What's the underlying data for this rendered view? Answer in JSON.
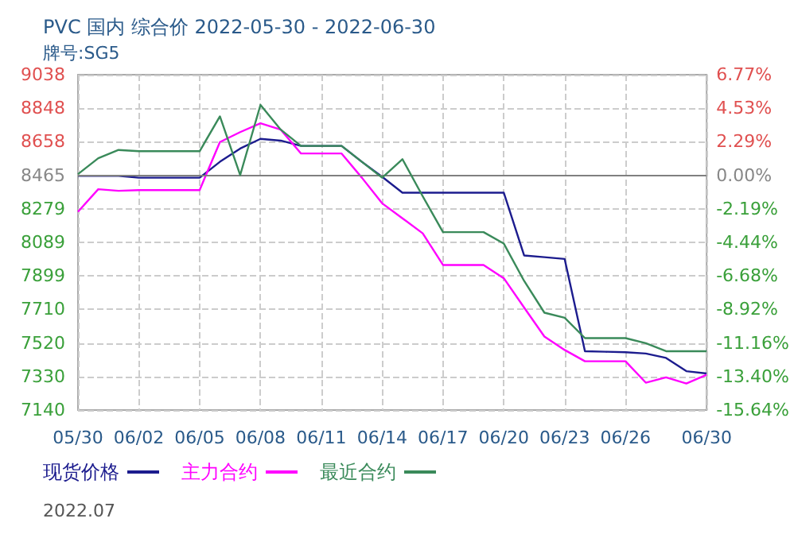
{
  "chart_data": {
    "type": "line",
    "title": "PVC 国内 综合价 2022-05-30 - 2022-06-30",
    "subtitle": "牌号:SG5",
    "x": [
      "2022-05-30",
      "2022-05-31",
      "2022-06-01",
      "2022-06-02",
      "2022-06-03",
      "2022-06-04",
      "2022-06-05",
      "2022-06-06",
      "2022-06-07",
      "2022-06-08",
      "2022-06-09",
      "2022-06-10",
      "2022-06-11",
      "2022-06-12",
      "2022-06-13",
      "2022-06-14",
      "2022-06-15",
      "2022-06-16",
      "2022-06-17",
      "2022-06-18",
      "2022-06-19",
      "2022-06-20",
      "2022-06-21",
      "2022-06-22",
      "2022-06-23",
      "2022-06-24",
      "2022-06-25",
      "2022-06-26",
      "2022-06-27",
      "2022-06-28",
      "2022-06-29",
      "2022-06-30"
    ],
    "series": [
      {
        "name": "现货价格",
        "color": "#1c1c8e",
        "values": [
          8465,
          8465,
          8465,
          8455,
          8455,
          8455,
          8455,
          8545,
          8620,
          8675,
          8665,
          8635,
          8635,
          8635,
          8545,
          8460,
          8370,
          8370,
          8370,
          8370,
          8370,
          8370,
          8015,
          8005,
          7995,
          7473,
          7470,
          7467,
          7460,
          7435,
          7360,
          7347
        ]
      },
      {
        "name": "主力合约",
        "color": "#ff00ff",
        "values": [
          8262,
          8390,
          8381,
          8385,
          8385,
          8385,
          8385,
          8657,
          8713,
          8763,
          8727,
          8592,
          8592,
          8592,
          8455,
          8310,
          8225,
          8140,
          7961,
          7961,
          7961,
          7886,
          7720,
          7556,
          7480,
          7416,
          7416,
          7416,
          7295,
          7325,
          7290,
          7340
        ]
      },
      {
        "name": "最近合约",
        "color": "#3a8a5a",
        "values": [
          8475,
          8565,
          8612,
          8605,
          8605,
          8605,
          8605,
          8802,
          8470,
          8867,
          8727,
          8635,
          8635,
          8635,
          8545,
          8455,
          8560,
          8350,
          8147,
          8147,
          8147,
          8082,
          7871,
          7691,
          7662,
          7547,
          7547,
          7547,
          7518,
          7473,
          7473,
          7473
        ]
      }
    ],
    "xlim": [
      "2022-05-30",
      "2022-06-30"
    ],
    "xticks": [
      {
        "value": "2022-05-30",
        "label": "05/30"
      },
      {
        "value": "2022-06-02",
        "label": "06/02"
      },
      {
        "value": "2022-06-05",
        "label": "06/05"
      },
      {
        "value": "2022-06-08",
        "label": "06/08"
      },
      {
        "value": "2022-06-11",
        "label": "06/11"
      },
      {
        "value": "2022-06-14",
        "label": "06/14"
      },
      {
        "value": "2022-06-17",
        "label": "06/17"
      },
      {
        "value": "2022-06-20",
        "label": "06/20"
      },
      {
        "value": "2022-06-23",
        "label": "06/23"
      },
      {
        "value": "2022-06-26",
        "label": "06/26"
      },
      {
        "value": "2022-06-30",
        "label": "06/30"
      }
    ],
    "ylim": [
      7140,
      9038
    ],
    "yticks": [
      7140,
      7330,
      7520,
      7710,
      7899,
      8089,
      8279,
      8465,
      8658,
      8848,
      9038
    ],
    "y2lim": [
      -15.64,
      6.77
    ],
    "y2ticks": [
      {
        "value": -15.64,
        "label": "-15.64%"
      },
      {
        "value": -13.4,
        "label": "-13.40%"
      },
      {
        "value": -11.16,
        "label": "-11.16%"
      },
      {
        "value": -8.92,
        "label": "-8.92%"
      },
      {
        "value": -6.68,
        "label": "-6.68%"
      },
      {
        "value": -4.44,
        "label": "-4.44%"
      },
      {
        "value": -2.19,
        "label": "-2.19%"
      },
      {
        "value": 0,
        "label": "0.00%"
      },
      {
        "value": 2.29,
        "label": "2.29%"
      },
      {
        "value": 4.53,
        "label": "4.53%"
      },
      {
        "value": 6.77,
        "label": "6.77%"
      }
    ],
    "ref_lines": [
      {
        "axis": "y",
        "value": 8465,
        "color": "#7f7f7f"
      }
    ],
    "annotations": [
      "2022.07"
    ],
    "grid": true,
    "legend": "bottom",
    "marker": "none",
    "line_style": "solid"
  }
}
